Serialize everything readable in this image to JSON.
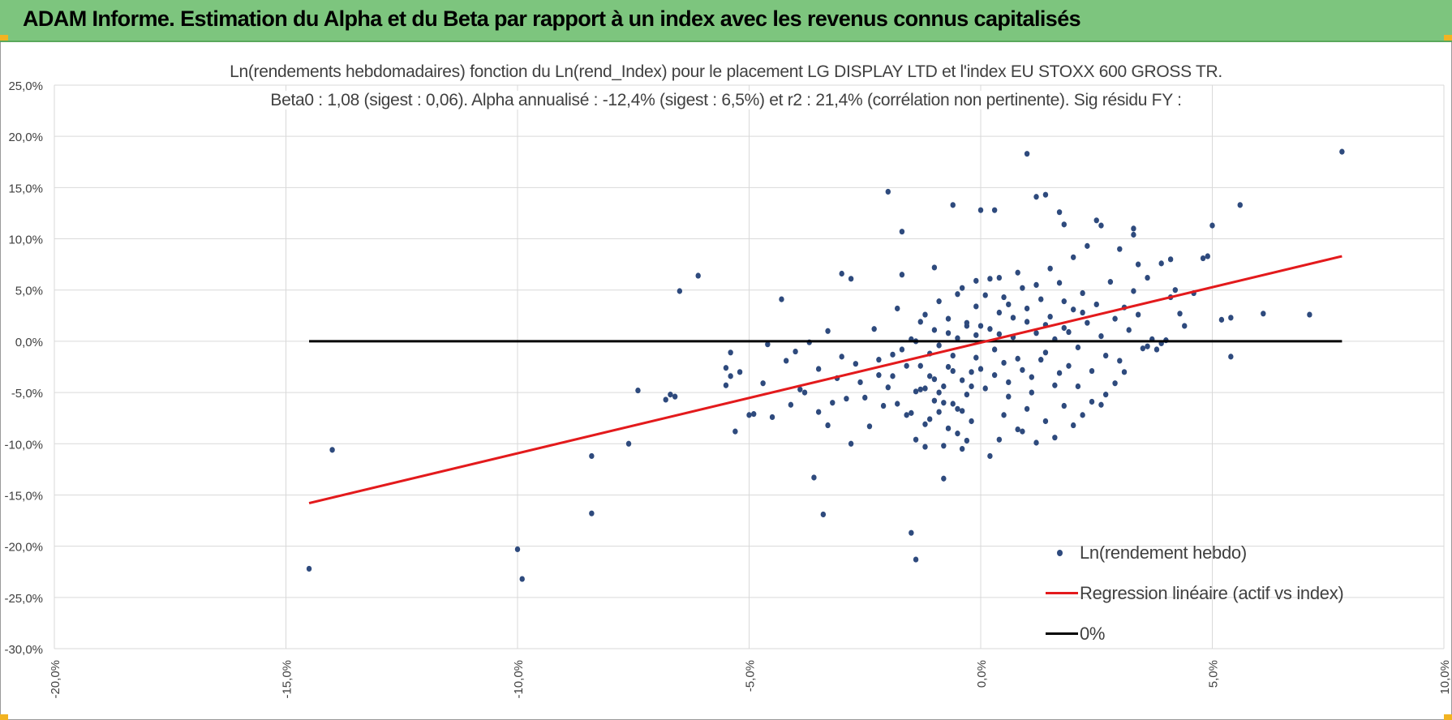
{
  "header": {
    "title": "ADAM Informe. Estimation du Alpha et du Beta par rapport à un index avec les revenus connus capitalisés"
  },
  "colors": {
    "banner": "#7dc57e",
    "accent_corner": "#f2b321",
    "points": "#2e4a7d",
    "regression": "#e31a1c",
    "zero_line": "#000000",
    "grid": "#d9d9d9"
  },
  "chart_data": {
    "type": "scatter",
    "title": "Ln(rendements hebdomadaires) fonction du Ln(rend_Index) pour le placement LG DISPLAY LTD et l'index EU STOXX 600 GROSS TR.",
    "subtitle": "Beta0 : 1,08 (sigest : 0,06). Alpha annualisé : -12,4% (sigest : 6,5%) et r2 : 21,4% (corrélation non pertinente). Sig résidu FY :",
    "xlabel": "",
    "ylabel": "",
    "xlim": [
      -0.2,
      0.1
    ],
    "ylim": [
      -0.3,
      0.25
    ],
    "x_ticks": [
      -0.2,
      -0.15,
      -0.1,
      -0.05,
      0.0,
      0.05,
      0.1
    ],
    "x_tick_labels": [
      "-20,0%",
      "-15,0%",
      "-10,0%",
      "-5,0%",
      "0,0%",
      "5,0%",
      "10,0%"
    ],
    "y_ticks": [
      0.25,
      0.2,
      0.15,
      0.1,
      0.05,
      0.0,
      -0.05,
      -0.1,
      -0.15,
      -0.2,
      -0.25,
      -0.3
    ],
    "y_tick_labels": [
      "25,0%",
      "20,0%",
      "15,0%",
      "10,0%",
      "5,0%",
      "0,0%",
      "-5,0%",
      "-10,0%",
      "-15,0%",
      "-20,0%",
      "-25,0%",
      "-30,0%"
    ],
    "grid": true,
    "legend_position": "bottom-right",
    "series": [
      {
        "name": "Ln(rendement hebdo)",
        "type": "scatter",
        "points": [
          [
            -0.145,
            -0.222
          ],
          [
            -0.14,
            -0.106
          ],
          [
            -0.1,
            -0.203
          ],
          [
            -0.099,
            -0.232
          ],
          [
            -0.084,
            -0.168
          ],
          [
            -0.084,
            -0.112
          ],
          [
            -0.076,
            -0.1
          ],
          [
            -0.074,
            -0.048
          ],
          [
            -0.068,
            -0.057
          ],
          [
            -0.067,
            -0.052
          ],
          [
            -0.066,
            -0.054
          ],
          [
            -0.065,
            0.049
          ],
          [
            -0.061,
            0.064
          ],
          [
            -0.055,
            -0.026
          ],
          [
            -0.055,
            -0.043
          ],
          [
            -0.054,
            -0.034
          ],
          [
            -0.054,
            -0.011
          ],
          [
            -0.053,
            -0.088
          ],
          [
            -0.052,
            -0.03
          ],
          [
            -0.05,
            -0.072
          ],
          [
            -0.049,
            -0.071
          ],
          [
            -0.047,
            -0.041
          ],
          [
            -0.046,
            -0.003
          ],
          [
            -0.045,
            -0.074
          ],
          [
            -0.043,
            0.041
          ],
          [
            -0.042,
            -0.019
          ],
          [
            -0.041,
            -0.062
          ],
          [
            -0.04,
            -0.01
          ],
          [
            -0.039,
            -0.047
          ],
          [
            -0.038,
            -0.05
          ],
          [
            -0.037,
            -0.001
          ],
          [
            -0.036,
            -0.133
          ],
          [
            -0.035,
            -0.027
          ],
          [
            -0.035,
            -0.069
          ],
          [
            -0.034,
            -0.169
          ],
          [
            -0.033,
            0.01
          ],
          [
            -0.033,
            -0.082
          ],
          [
            -0.032,
            -0.06
          ],
          [
            -0.031,
            -0.036
          ],
          [
            -0.03,
            -0.015
          ],
          [
            -0.029,
            -0.056
          ],
          [
            -0.028,
            -0.1
          ],
          [
            -0.027,
            -0.022
          ],
          [
            -0.026,
            -0.04
          ],
          [
            -0.025,
            -0.055
          ],
          [
            -0.024,
            -0.083
          ],
          [
            -0.023,
            0.012
          ],
          [
            -0.022,
            -0.033
          ],
          [
            -0.022,
            -0.018
          ],
          [
            -0.021,
            -0.063
          ],
          [
            -0.02,
            -0.045
          ],
          [
            -0.019,
            -0.034
          ],
          [
            -0.018,
            0.032
          ],
          [
            -0.017,
            -0.008
          ],
          [
            -0.017,
            0.065
          ],
          [
            -0.016,
            -0.072
          ],
          [
            -0.015,
            -0.187
          ],
          [
            -0.015,
            0.002
          ],
          [
            -0.014,
            -0.213
          ],
          [
            -0.014,
            -0.049
          ],
          [
            -0.013,
            0.019
          ],
          [
            -0.013,
            -0.024
          ],
          [
            -0.012,
            -0.081
          ],
          [
            -0.012,
            -0.103
          ],
          [
            -0.011,
            -0.034
          ],
          [
            -0.01,
            0.011
          ],
          [
            -0.01,
            -0.058
          ],
          [
            -0.009,
            -0.004
          ],
          [
            -0.009,
            -0.069
          ],
          [
            -0.008,
            -0.102
          ],
          [
            -0.008,
            -0.044
          ],
          [
            -0.007,
            0.022
          ],
          [
            -0.007,
            -0.025
          ],
          [
            -0.006,
            -0.014
          ],
          [
            -0.006,
            -0.061
          ],
          [
            -0.005,
            -0.09
          ],
          [
            -0.005,
            0.003
          ],
          [
            -0.004,
            -0.038
          ],
          [
            -0.004,
            -0.105
          ],
          [
            -0.003,
            -0.052
          ],
          [
            -0.003,
            0.018
          ],
          [
            -0.002,
            -0.03
          ],
          [
            -0.002,
            -0.078
          ],
          [
            -0.001,
            0.006
          ],
          [
            -0.001,
            -0.016
          ],
          [
            -0.02,
            0.146
          ],
          [
            -0.017,
            0.107
          ],
          [
            -0.006,
            0.133
          ],
          [
            0.0,
            0.128
          ],
          [
            0.003,
            0.128
          ],
          [
            -0.03,
            0.066
          ],
          [
            -0.028,
            0.061
          ],
          [
            -0.01,
            0.072
          ],
          [
            -0.004,
            0.052
          ],
          [
            0.004,
            0.062
          ],
          [
            -0.008,
            -0.134
          ],
          [
            0.002,
            -0.112
          ],
          [
            0.004,
            -0.096
          ],
          [
            0.009,
            -0.088
          ],
          [
            0.01,
            0.183
          ],
          [
            0.012,
            0.141
          ],
          [
            0.014,
            0.143
          ],
          [
            0.017,
            0.126
          ],
          [
            0.018,
            0.114
          ],
          [
            0.023,
            0.093
          ],
          [
            0.025,
            0.118
          ],
          [
            0.026,
            0.113
          ],
          [
            0.03,
            0.09
          ],
          [
            0.033,
            0.11
          ],
          [
            0.033,
            0.104
          ],
          [
            0.034,
            0.075
          ],
          [
            0.036,
            0.062
          ],
          [
            0.039,
            0.076
          ],
          [
            0.041,
            0.043
          ],
          [
            0.042,
            0.05
          ],
          [
            0.041,
            0.08
          ],
          [
            0.043,
            0.027
          ],
          [
            0.044,
            0.015
          ],
          [
            0.046,
            0.047
          ],
          [
            0.048,
            0.081
          ],
          [
            0.049,
            0.083
          ],
          [
            0.05,
            0.113
          ],
          [
            0.052,
            0.021
          ],
          [
            0.054,
            0.023
          ],
          [
            0.054,
            -0.015
          ],
          [
            0.056,
            0.133
          ],
          [
            0.061,
            0.027
          ],
          [
            0.071,
            0.026
          ],
          [
            0.078,
            0.185
          ],
          [
            0.036,
            -0.005
          ],
          [
            0.037,
            0.002
          ],
          [
            0.038,
            -0.008
          ],
          [
            0.039,
            -0.002
          ],
          [
            0.04,
            0.001
          ],
          [
            0.031,
            -0.03
          ],
          [
            0.029,
            -0.041
          ],
          [
            0.027,
            -0.052
          ],
          [
            0.026,
            -0.062
          ],
          [
            0.024,
            -0.059
          ],
          [
            0.022,
            -0.072
          ],
          [
            0.02,
            -0.082
          ],
          [
            0.018,
            -0.063
          ],
          [
            0.016,
            -0.094
          ],
          [
            0.014,
            -0.078
          ],
          [
            0.012,
            -0.099
          ],
          [
            0.01,
            -0.066
          ],
          [
            0.008,
            -0.086
          ],
          [
            0.006,
            -0.054
          ],
          [
            0.005,
            -0.072
          ],
          [
            0.001,
            0.045
          ],
          [
            0.002,
            0.012
          ],
          [
            0.003,
            -0.008
          ],
          [
            0.004,
            0.028
          ],
          [
            0.005,
            -0.021
          ],
          [
            0.006,
            0.036
          ],
          [
            0.007,
            0.004
          ],
          [
            0.008,
            -0.017
          ],
          [
            0.009,
            0.052
          ],
          [
            0.01,
            0.019
          ],
          [
            0.011,
            -0.035
          ],
          [
            0.012,
            0.008
          ],
          [
            0.013,
            0.041
          ],
          [
            0.014,
            -0.011
          ],
          [
            0.015,
            0.024
          ],
          [
            0.016,
            -0.043
          ],
          [
            0.017,
            0.057
          ],
          [
            0.018,
            0.013
          ],
          [
            0.019,
            -0.024
          ],
          [
            0.02,
            0.031
          ],
          [
            0.021,
            -0.006
          ],
          [
            0.022,
            0.047
          ],
          [
            0.023,
            0.018
          ],
          [
            0.024,
            -0.029
          ],
          [
            0.025,
            0.036
          ],
          [
            0.026,
            0.005
          ],
          [
            0.027,
            -0.014
          ],
          [
            0.028,
            0.058
          ],
          [
            0.029,
            0.022
          ],
          [
            0.03,
            -0.019
          ],
          [
            0.031,
            0.033
          ],
          [
            0.032,
            0.011
          ],
          [
            0.033,
            0.049
          ],
          [
            0.034,
            0.026
          ],
          [
            0.035,
            -0.007
          ],
          [
            -0.001,
            0.034
          ],
          [
            0.0,
            -0.027
          ],
          [
            0.0,
            0.015
          ],
          [
            0.001,
            -0.046
          ],
          [
            0.002,
            0.061
          ],
          [
            0.003,
            -0.033
          ],
          [
            0.004,
            0.007
          ],
          [
            0.005,
            0.043
          ],
          [
            0.006,
            -0.04
          ],
          [
            0.007,
            0.023
          ],
          [
            0.008,
            0.067
          ],
          [
            0.009,
            -0.028
          ],
          [
            0.01,
            0.032
          ],
          [
            0.011,
            -0.05
          ],
          [
            0.012,
            0.055
          ],
          [
            0.013,
            -0.018
          ],
          [
            0.014,
            0.016
          ],
          [
            0.015,
            0.071
          ],
          [
            0.016,
            0.002
          ],
          [
            0.017,
            -0.031
          ],
          [
            0.018,
            0.039
          ],
          [
            0.019,
            0.009
          ],
          [
            0.02,
            0.082
          ],
          [
            0.021,
            -0.044
          ],
          [
            0.022,
            0.028
          ],
          [
            -0.015,
            -0.07
          ],
          [
            -0.014,
            0.0
          ],
          [
            -0.013,
            -0.047
          ],
          [
            -0.012,
            0.026
          ],
          [
            -0.011,
            -0.012
          ],
          [
            -0.01,
            -0.037
          ],
          [
            -0.009,
            0.039
          ],
          [
            -0.008,
            -0.06
          ],
          [
            -0.007,
            0.008
          ],
          [
            -0.006,
            -0.029
          ],
          [
            -0.005,
            0.046
          ],
          [
            -0.004,
            -0.068
          ],
          [
            -0.003,
            0.015
          ],
          [
            -0.002,
            -0.044
          ],
          [
            -0.001,
            0.059
          ],
          [
            -0.019,
            -0.013
          ],
          [
            -0.018,
            -0.061
          ],
          [
            -0.016,
            -0.024
          ],
          [
            -0.014,
            -0.096
          ],
          [
            -0.012,
            -0.046
          ],
          [
            -0.011,
            -0.076
          ],
          [
            -0.009,
            -0.05
          ],
          [
            -0.007,
            -0.085
          ],
          [
            -0.005,
            -0.066
          ],
          [
            -0.003,
            -0.097
          ]
        ]
      },
      {
        "name": "Regression linéaire (actif vs index)",
        "type": "line",
        "points": [
          [
            -0.145,
            -0.158
          ],
          [
            0.078,
            0.083
          ]
        ]
      },
      {
        "name": "0%",
        "type": "line",
        "points": [
          [
            -0.145,
            0.0
          ],
          [
            0.078,
            0.0
          ]
        ]
      }
    ]
  }
}
